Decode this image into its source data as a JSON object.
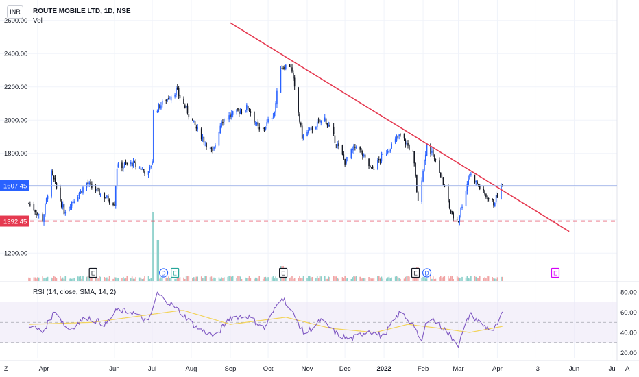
{
  "header": {
    "symbol": "ROUTE MOBILE LTD, 1D, NSE",
    "currency": "INR",
    "volume_label": "Vol",
    "rsi_label": "RSI (14, close, SMA, 14, 2)"
  },
  "colors": {
    "up": "#2962ff",
    "down": "#131722",
    "trendline": "#e53950",
    "support": "#e53950",
    "rsi_line": "#7e57c2",
    "rsi_sma": "#f2d35a",
    "rsi_band": "#ede7f6",
    "current_price_tag": "#2962ff",
    "vol_up": "#80cbc4",
    "vol_down": "#ef9a9a",
    "earnings": "#131722",
    "dividend": "#2962ff",
    "split": "#26a69a",
    "future_event": "#d500f9"
  },
  "price_axis": {
    "ticks": [
      "2600.00",
      "2400.00",
      "2200.00",
      "2000.00",
      "1800.00",
      "1200.00"
    ],
    "current_price_label": "1607.45",
    "support_label": "1392.45"
  },
  "rsi_axis": {
    "ticks": [
      "80.00",
      "60.00",
      "40.00",
      "20.00"
    ]
  },
  "time_axis": {
    "labels": [
      "Apr",
      "Jun",
      "Jul",
      "Aug",
      "Sep",
      "Oct",
      "Nov",
      "Dec",
      "2022",
      "Feb",
      "Mar",
      "Apr",
      "3",
      "Jun",
      "Ju"
    ],
    "corner_left": "Z",
    "corner_right": "A"
  },
  "events": [
    {
      "type": "E",
      "date": "2021-05"
    },
    {
      "type": "D",
      "date": "2021-07"
    },
    {
      "type": "E",
      "date": "2021-07"
    },
    {
      "type": "E",
      "date": "2021-10"
    },
    {
      "type": "E",
      "date": "2022-01"
    },
    {
      "type": "D",
      "date": "2022-02"
    },
    {
      "type": "E",
      "date": "2022-05"
    }
  ],
  "chart_data": [
    {
      "type": "candlestick",
      "title": "ROUTE MOBILE LTD, 1D, NSE",
      "x_range": [
        "2021-03-25",
        "2022-07-05"
      ],
      "ylim": [
        1040,
        2640
      ],
      "keypoints": [
        {
          "date": "2021-03-25",
          "close": 1500
        },
        {
          "date": "2021-04-05",
          "close": 1400
        },
        {
          "date": "2021-04-12",
          "close": 1680
        },
        {
          "date": "2021-04-22",
          "close": 1450
        },
        {
          "date": "2021-05-10",
          "close": 1620
        },
        {
          "date": "2021-05-20",
          "close": 1560
        },
        {
          "date": "2021-06-01",
          "close": 1500
        },
        {
          "date": "2021-06-03",
          "close": 1720
        },
        {
          "date": "2021-06-15",
          "close": 1740
        },
        {
          "date": "2021-06-28",
          "close": 1680
        },
        {
          "date": "2021-07-01",
          "close": 1760
        },
        {
          "date": "2021-07-02",
          "close": 2050
        },
        {
          "date": "2021-07-20",
          "close": 2180
        },
        {
          "date": "2021-08-05",
          "close": 1950
        },
        {
          "date": "2021-08-18",
          "close": 1800
        },
        {
          "date": "2021-08-25",
          "close": 2000
        },
        {
          "date": "2021-09-15",
          "close": 2080
        },
        {
          "date": "2021-09-25",
          "close": 1920
        },
        {
          "date": "2021-10-06",
          "close": 2050
        },
        {
          "date": "2021-10-11",
          "close": 2320
        },
        {
          "date": "2021-10-19",
          "close": 2330
        },
        {
          "date": "2021-10-28",
          "close": 1900
        },
        {
          "date": "2021-11-08",
          "close": 1970
        },
        {
          "date": "2021-11-15",
          "close": 2010
        },
        {
          "date": "2021-12-01",
          "close": 1750
        },
        {
          "date": "2021-12-10",
          "close": 1850
        },
        {
          "date": "2021-12-22",
          "close": 1700
        },
        {
          "date": "2022-01-07",
          "close": 1850
        },
        {
          "date": "2022-01-14",
          "close": 1910
        },
        {
          "date": "2022-01-24",
          "close": 1800
        },
        {
          "date": "2022-01-28",
          "close": 1500
        },
        {
          "date": "2022-02-04",
          "close": 1860
        },
        {
          "date": "2022-02-14",
          "close": 1700
        },
        {
          "date": "2022-02-24",
          "close": 1420
        },
        {
          "date": "2022-03-01",
          "close": 1400
        },
        {
          "date": "2022-03-10",
          "close": 1680
        },
        {
          "date": "2022-03-22",
          "close": 1550
        },
        {
          "date": "2022-03-29",
          "close": 1500
        },
        {
          "date": "2022-04-05",
          "close": 1607.45
        }
      ],
      "volume": [
        {
          "date": "2021-05-15",
          "value": 0.18
        },
        {
          "date": "2021-07-02",
          "value": 1.0
        },
        {
          "date": "2021-07-05",
          "value": 0.6
        },
        {
          "date": "2021-10-12",
          "value": 0.22
        },
        {
          "date": "2022-01-28",
          "value": 0.2
        }
      ],
      "trendline": {
        "from": {
          "date": "2021-09-01",
          "price": 2585
        },
        "to": {
          "date": "2022-05-28",
          "price": 1330
        }
      },
      "support": {
        "price": 1392.45
      },
      "current_price": 1607.45
    },
    {
      "type": "line",
      "title": "RSI (14, close, SMA, 14, 2)",
      "ylim": [
        15,
        88
      ],
      "bands": [
        30,
        70
      ],
      "midline": 50,
      "keypoints": [
        {
          "date": "2021-03-25",
          "rsi": 48
        },
        {
          "date": "2021-04-05",
          "rsi": 40
        },
        {
          "date": "2021-04-15",
          "rsi": 62
        },
        {
          "date": "2021-04-25",
          "rsi": 42
        },
        {
          "date": "2021-05-10",
          "rsi": 55
        },
        {
          "date": "2021-05-25",
          "rsi": 48
        },
        {
          "date": "2021-06-03",
          "rsi": 62
        },
        {
          "date": "2021-06-15",
          "rsi": 60
        },
        {
          "date": "2021-06-28",
          "rsi": 50
        },
        {
          "date": "2021-07-05",
          "rsi": 78
        },
        {
          "date": "2021-07-20",
          "rsi": 64
        },
        {
          "date": "2021-08-05",
          "rsi": 45
        },
        {
          "date": "2021-08-20",
          "rsi": 36
        },
        {
          "date": "2021-09-01",
          "rsi": 55
        },
        {
          "date": "2021-09-15",
          "rsi": 56
        },
        {
          "date": "2021-09-28",
          "rsi": 44
        },
        {
          "date": "2021-10-12",
          "rsi": 76
        },
        {
          "date": "2021-10-20",
          "rsi": 60
        },
        {
          "date": "2021-10-30",
          "rsi": 38
        },
        {
          "date": "2021-11-12",
          "rsi": 52
        },
        {
          "date": "2021-11-25",
          "rsi": 38
        },
        {
          "date": "2021-12-05",
          "rsi": 33
        },
        {
          "date": "2021-12-20",
          "rsi": 42
        },
        {
          "date": "2021-12-31",
          "rsi": 36
        },
        {
          "date": "2022-01-14",
          "rsi": 60
        },
        {
          "date": "2022-01-25",
          "rsi": 47
        },
        {
          "date": "2022-01-30",
          "rsi": 27
        },
        {
          "date": "2022-02-05",
          "rsi": 57
        },
        {
          "date": "2022-02-18",
          "rsi": 43
        },
        {
          "date": "2022-03-01",
          "rsi": 28
        },
        {
          "date": "2022-03-10",
          "rsi": 58
        },
        {
          "date": "2022-03-22",
          "rsi": 46
        },
        {
          "date": "2022-03-29",
          "rsi": 42
        },
        {
          "date": "2022-04-05",
          "rsi": 58
        }
      ],
      "sma_keypoints": [
        {
          "date": "2021-03-25",
          "rsi": 48
        },
        {
          "date": "2021-05-15",
          "rsi": 50
        },
        {
          "date": "2021-07-25",
          "rsi": 62
        },
        {
          "date": "2021-09-01",
          "rsi": 48
        },
        {
          "date": "2021-10-15",
          "rsi": 55
        },
        {
          "date": "2021-11-20",
          "rsi": 44
        },
        {
          "date": "2021-12-25",
          "rsi": 40
        },
        {
          "date": "2022-01-20",
          "rsi": 48
        },
        {
          "date": "2022-02-15",
          "rsi": 44
        },
        {
          "date": "2022-03-10",
          "rsi": 40
        },
        {
          "date": "2022-04-05",
          "rsi": 46
        }
      ]
    }
  ]
}
